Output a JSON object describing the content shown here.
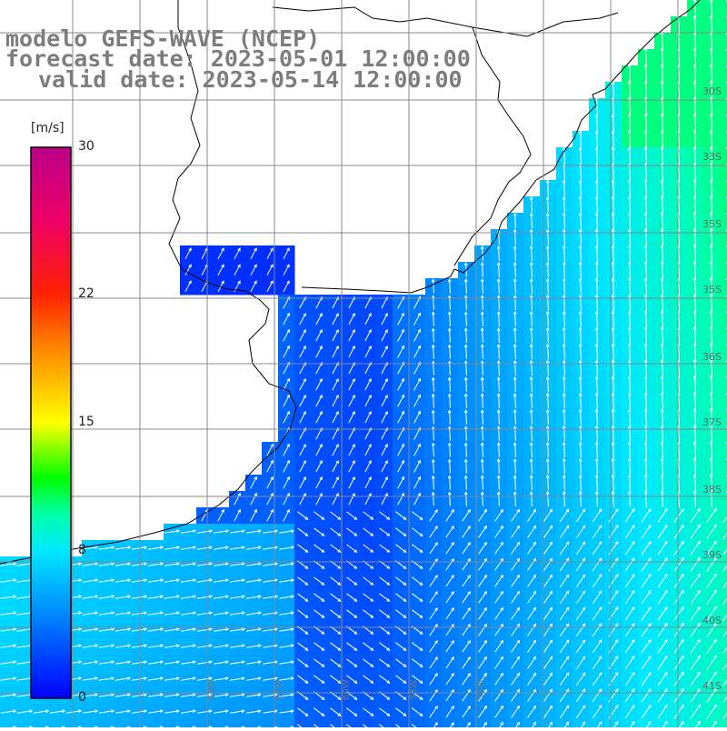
{
  "title": {
    "line1": "modelo GEFS-WAVE (NCEP)",
    "line2": "forecast date: 2023-05-01 12:00:00",
    "line3": "valid date: 2023-05-14 12:00:00"
  },
  "colorbar": {
    "unit": "[m/s]",
    "ticks": [
      "30",
      "22",
      "15",
      "8",
      "0"
    ],
    "tick_values": [
      30,
      22,
      15,
      8,
      0
    ],
    "range": [
      0,
      30
    ],
    "stops": [
      {
        "v": 0,
        "color": "#0000ff"
      },
      {
        "v": 4,
        "color": "#0077ff"
      },
      {
        "v": 8,
        "color": "#00e8ff"
      },
      {
        "v": 10,
        "color": "#00ffaa"
      },
      {
        "v": 12,
        "color": "#00ff00"
      },
      {
        "v": 15,
        "color": "#ffff00"
      },
      {
        "v": 19,
        "color": "#ff8800"
      },
      {
        "v": 22,
        "color": "#ff2200"
      },
      {
        "v": 26,
        "color": "#ee0066"
      },
      {
        "v": 30,
        "color": "#bb0088"
      }
    ]
  },
  "lat_labels": [
    "30S",
    "33S",
    "35S",
    "35S",
    "36S",
    "37S",
    "38S",
    "39S",
    "40S",
    "41S"
  ],
  "lon_labels": [
    "64W",
    "62W",
    "60W",
    "58W",
    "56W"
  ],
  "colors": {
    "land": "#ffffff",
    "grid": "#888888",
    "coast": "#000000",
    "arrow": "#ffffff"
  },
  "field_description": "wind speed shaded with white direction arrows"
}
